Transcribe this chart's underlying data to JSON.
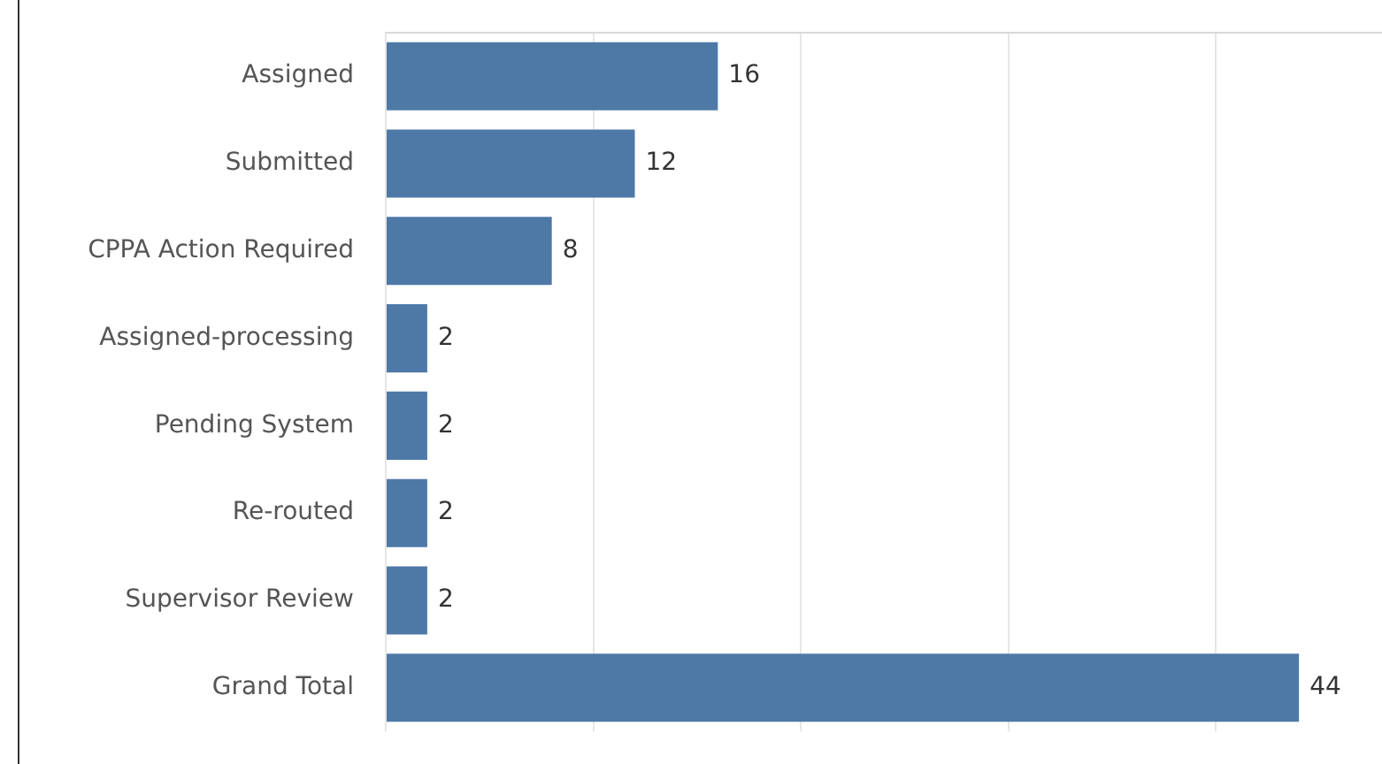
{
  "chart_data": {
    "type": "bar",
    "orientation": "horizontal",
    "categories": [
      "Assigned",
      "Submitted",
      "CPPA Action Required",
      "Assigned-processing",
      "Pending System",
      "Re-routed",
      "Supervisor Review",
      "Grand Total"
    ],
    "values": [
      16,
      12,
      8,
      2,
      2,
      2,
      2,
      44
    ],
    "color": "#4e79a7",
    "xlim": [
      0,
      48
    ],
    "xticks": [
      {
        "value": 0,
        "label": null
      },
      {
        "value": 10,
        "label": null
      },
      {
        "value": 20,
        "label": null
      },
      {
        "value": 30,
        "label": null
      },
      {
        "value": 40,
        "label": null
      }
    ],
    "tick_labels": "y",
    "grid": "x",
    "legend": false,
    "data_labels": true
  }
}
